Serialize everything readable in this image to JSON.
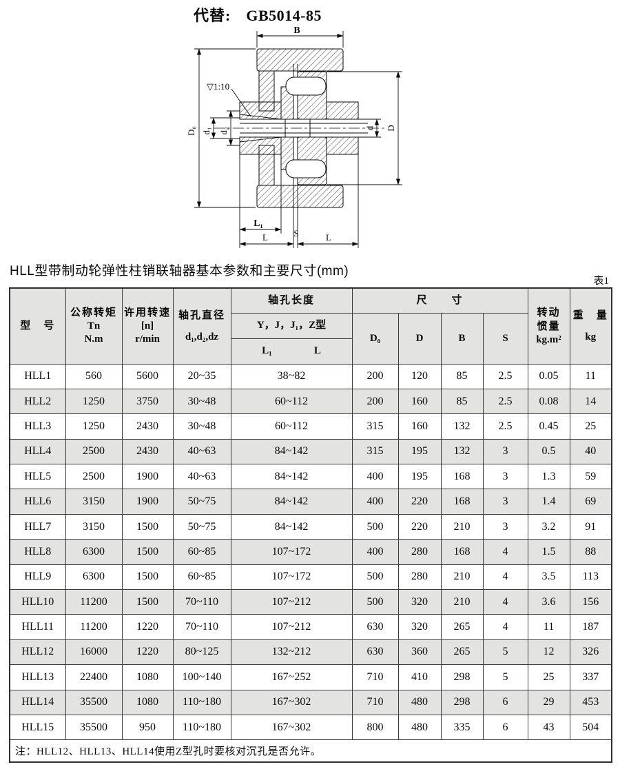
{
  "page": {
    "replaces_label": "代替:",
    "standard": "GB5014-85",
    "table_title": "HLL型带制动轮弹性柱销联轴器基本参数和主要尺寸(mm)",
    "table_tag": "表1",
    "note": "注：HLL12、HLL13、HLL14使用Z型孔时要核对沉孔是否允许。"
  },
  "drawing": {
    "taper": "▽1:10",
    "dim_B": "B",
    "dim_D0": "D₀",
    "dim_d1": "d₁",
    "dim_d2": "d₂",
    "dim_d": "d",
    "dim_D": "D",
    "dim_L1": "L₁",
    "dim_L_left": "L",
    "dim_S": "S",
    "dim_L_right": "L"
  },
  "table": {
    "header": {
      "model": "型　号",
      "torque": [
        "公称转矩",
        "Tn",
        "N.m"
      ],
      "speed": [
        "许用转速",
        "[n]",
        "r/min"
      ],
      "bore_dia": [
        "轴孔直径",
        "d₁,d₂,dz"
      ],
      "bore_len_group": "轴孔长度",
      "bore_len_types": "Y，J，J₁，Z型",
      "bore_len_l1": "L₁",
      "bore_len_l": "L",
      "size_group": "尺　　寸",
      "size_cols": [
        "D₀",
        "D",
        "B",
        "S"
      ],
      "inertia": [
        "转动",
        "惯量",
        "kg.m²"
      ],
      "weight": [
        "重　量",
        "kg"
      ]
    },
    "rows": [
      [
        "HLL1",
        "560",
        "5600",
        "20~35",
        "38~82",
        "200",
        "120",
        "85",
        "2.5",
        "0.05",
        "11"
      ],
      [
        "HLL2",
        "1250",
        "3750",
        "30~48",
        "60~112",
        "200",
        "160",
        "85",
        "2.5",
        "0.08",
        "14"
      ],
      [
        "HLL3",
        "1250",
        "2430",
        "30~48",
        "60~112",
        "315",
        "160",
        "132",
        "2.5",
        "0.45",
        "25"
      ],
      [
        "HLL4",
        "2500",
        "2430",
        "40~63",
        "84~142",
        "315",
        "195",
        "132",
        "3",
        "0.5",
        "40"
      ],
      [
        "HLL5",
        "2500",
        "1900",
        "40~63",
        "84~142",
        "400",
        "195",
        "168",
        "3",
        "1.3",
        "59"
      ],
      [
        "HLL6",
        "3150",
        "1900",
        "50~75",
        "84~142",
        "400",
        "220",
        "168",
        "3",
        "1.4",
        "69"
      ],
      [
        "HLL7",
        "3150",
        "1500",
        "50~75",
        "84~142",
        "500",
        "220",
        "210",
        "3",
        "3.2",
        "91"
      ],
      [
        "HLL8",
        "6300",
        "1500",
        "60~85",
        "107~172",
        "400",
        "280",
        "168",
        "4",
        "1.5",
        "88"
      ],
      [
        "HLL9",
        "6300",
        "1500",
        "60~85",
        "107~172",
        "500",
        "280",
        "210",
        "4",
        "3.5",
        "113"
      ],
      [
        "HLL10",
        "11200",
        "1500",
        "70~110",
        "107~212",
        "500",
        "320",
        "210",
        "4",
        "3.6",
        "156"
      ],
      [
        "HLL11",
        "11200",
        "1220",
        "70~110",
        "107~212",
        "630",
        "320",
        "265",
        "4",
        "11",
        "187"
      ],
      [
        "HLL12",
        "16000",
        "1220",
        "80~125",
        "132~212",
        "630",
        "360",
        "265",
        "5",
        "12",
        "326"
      ],
      [
        "HLL13",
        "22400",
        "1080",
        "100~140",
        "167~252",
        "710",
        "410",
        "298",
        "5",
        "25",
        "337"
      ],
      [
        "HLL14",
        "35500",
        "1080",
        "110~180",
        "167~302",
        "710",
        "480",
        "298",
        "6",
        "29",
        "453"
      ],
      [
        "HLL15",
        "35500",
        "950",
        "110~180",
        "167~302",
        "800",
        "480",
        "335",
        "6",
        "43",
        "504"
      ]
    ]
  }
}
